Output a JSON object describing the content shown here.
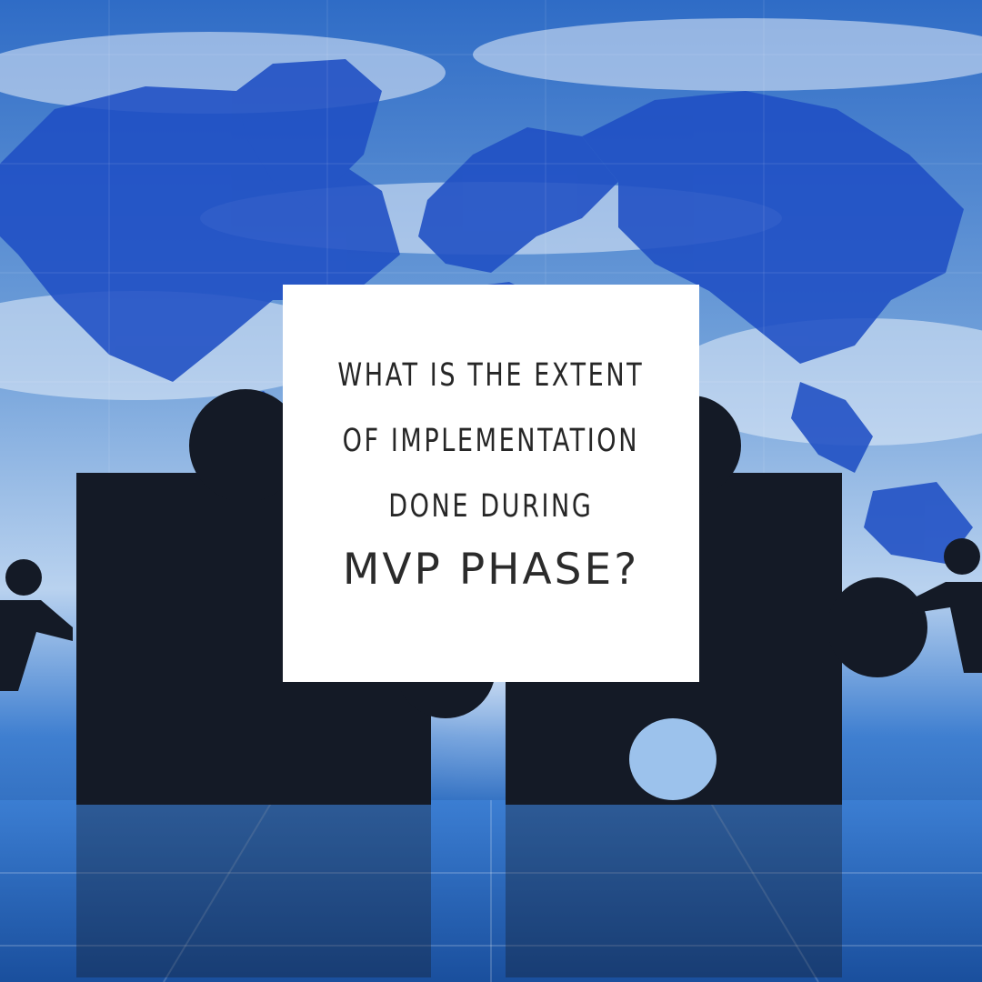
{
  "card": {
    "question_lines": [
      "WHAT IS THE EXTENT",
      "OF IMPLEMENTATION",
      "DONE DURING"
    ],
    "headline": "MVP PHASE?"
  },
  "colors": {
    "sky_dark": "#1446a8",
    "sky_light": "#dbe8f6",
    "continent": "#1f4fc4",
    "silhouette": "#141a26",
    "card": "#ffffff",
    "text": "#262626"
  },
  "icons": [
    "world-map-background",
    "puzzle-piece-left",
    "puzzle-piece-right",
    "person-pushing-left",
    "person-pushing-right"
  ]
}
